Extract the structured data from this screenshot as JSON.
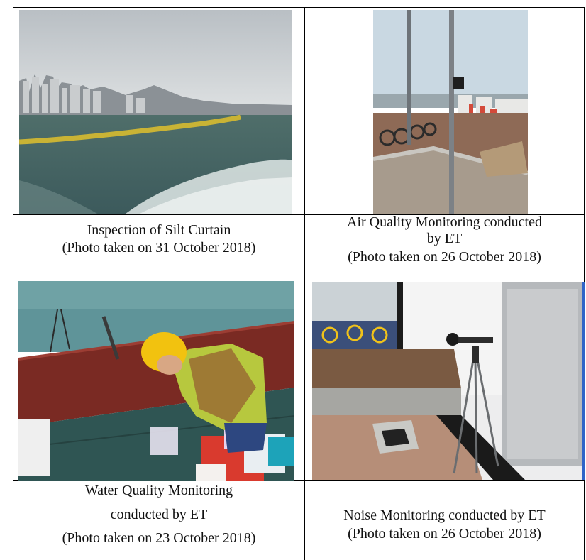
{
  "photos": [
    {
      "title": "Inspection of Silt Curtain",
      "date": "(Photo taken on 31 October 2018)",
      "icon": "silt-curtain-photo"
    },
    {
      "title_line1": "Air Quality Monitoring conducted",
      "title_line2": "by ET",
      "date": "(Photo taken on 26 October 2018)",
      "icon": "air-quality-monitor-photo"
    },
    {
      "title_line1": "Water Quality Monitoring",
      "title_line2": "conducted by ET",
      "date": "(Photo taken on 23 October 2018)",
      "icon": "water-sampling-photo"
    },
    {
      "title": "Noise Monitoring conducted by ET",
      "date": "(Photo taken on 26 October 2018)",
      "icon": "noise-meter-photo"
    }
  ]
}
